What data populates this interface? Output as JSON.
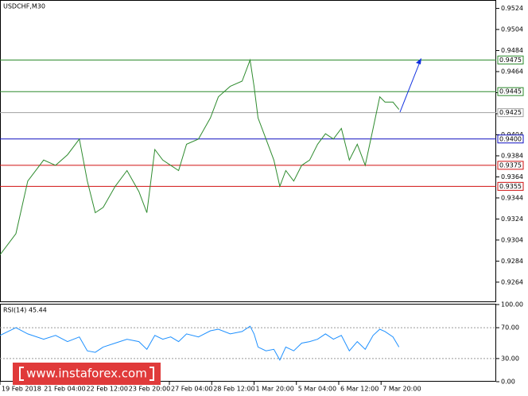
{
  "chart_data": [
    {
      "type": "line",
      "title": "USDCHF,M30",
      "x": [
        0,
        24,
        42,
        66,
        84,
        102,
        120,
        132,
        144,
        156,
        174,
        192,
        210,
        222,
        234,
        246,
        258,
        270,
        282,
        300,
        318,
        330,
        348,
        366,
        378,
        384,
        390,
        402,
        414,
        423,
        432,
        444,
        456,
        468,
        480,
        492,
        504,
        516,
        528,
        540,
        552,
        564,
        574,
        582,
        594,
        603
      ],
      "series": [
        {
          "color": "#2e8b2e",
          "values": [
            0.929,
            0.931,
            0.936,
            0.938,
            0.9375,
            0.9385,
            0.94,
            0.936,
            0.933,
            0.9335,
            0.9355,
            0.937,
            0.935,
            0.933,
            0.939,
            0.938,
            0.9375,
            0.937,
            0.9395,
            0.94,
            0.942,
            0.944,
            0.945,
            0.9455,
            0.9475,
            0.945,
            0.942,
            0.94,
            0.938,
            0.9355,
            0.937,
            0.936,
            0.9375,
            0.938,
            0.9395,
            0.9405,
            0.94,
            0.941,
            0.938,
            0.9395,
            0.9375,
            0.941,
            0.944,
            0.9435,
            0.9435,
            0.9428
          ]
        }
      ],
      "xlim": [
        0,
        750
      ],
      "xticks": [
        {
          "value": 0,
          "label": "19 Feb 2018"
        },
        {
          "value": 64,
          "label": "21 Feb 04:00"
        },
        {
          "value": 128,
          "label": "22 Feb 12:00"
        },
        {
          "value": 192,
          "label": "23 Feb 20:00"
        },
        {
          "value": 256,
          "label": "27 Feb 04:00"
        },
        {
          "value": 320,
          "label": "28 Feb 12:00"
        },
        {
          "value": 384,
          "label": "1 Mar 20:00"
        },
        {
          "value": 448,
          "label": "5 Mar 04:00"
        },
        {
          "value": 512,
          "label": "6 Mar 12:00"
        },
        {
          "value": 576,
          "label": "7 Mar 20:00"
        }
      ],
      "ylim": [
        0.9245,
        0.9532
      ],
      "yticks": [
        0.9264,
        0.9284,
        0.9304,
        0.9324,
        0.9344,
        0.9364,
        0.9384,
        0.9404,
        0.9424,
        0.9444,
        0.9464,
        0.9484,
        0.9504,
        0.9524
      ],
      "levels": [
        {
          "value": 0.9475,
          "label": "0.9475",
          "color": "#2e8b2e"
        },
        {
          "value": 0.9445,
          "label": "0.9445",
          "color": "#2e8b2e"
        },
        {
          "value": 0.9425,
          "label": "0.9425",
          "color": "#a0a0a0"
        },
        {
          "value": 0.94,
          "label": "0.9400",
          "color": "#1010c0"
        },
        {
          "value": 0.9375,
          "label": "0.9375",
          "color": "#d01010"
        },
        {
          "value": 0.9355,
          "label": "0.9355",
          "color": "#d01010"
        }
      ],
      "watermark": "www.instaforex.com"
    },
    {
      "type": "line",
      "title": "RSI(14) 45.44",
      "series": [
        {
          "color": "#1e90ff",
          "values": [
            60,
            70,
            62,
            55,
            60,
            52,
            58,
            40,
            38,
            45,
            50,
            55,
            52,
            42,
            60,
            55,
            58,
            52,
            62,
            58,
            66,
            68,
            62,
            65,
            72,
            62,
            45,
            40,
            42,
            28,
            45,
            40,
            50,
            52,
            55,
            62,
            55,
            60,
            40,
            52,
            42,
            60,
            68,
            65,
            58,
            45
          ]
        }
      ],
      "ylim": [
        0,
        100
      ],
      "yticks": [
        {
          "value": 100,
          "label": "100.00"
        },
        {
          "value": 70,
          "label": "70.00"
        },
        {
          "value": 30,
          "label": "30.00"
        },
        {
          "value": 0,
          "label": "0.00"
        }
      ]
    }
  ]
}
